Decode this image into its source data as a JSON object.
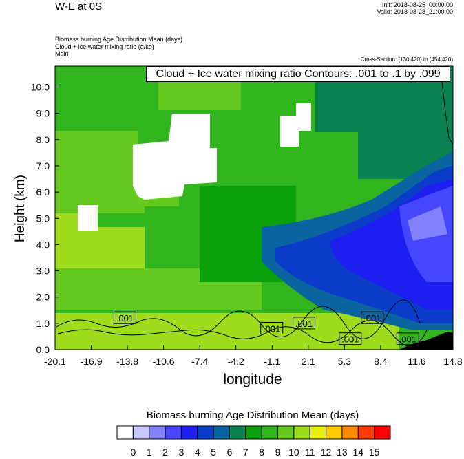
{
  "title": "W-E at 0S",
  "init": "Init: 2018-08-25_00:00:00",
  "valid": "Valid: 2018-08-28_21:00:00",
  "desc_lines": [
    "Biomass burning Age Distribution Mean   (days)",
    "Cloud + ice water mixing ratio   (g/kg)",
    "Main"
  ],
  "cross_section": "Cross-Section: (130,420) to (454,420)",
  "contour_label": "Cloud + Ice water mixing ratio Contours: .001 to .1 by .099",
  "chart_data": {
    "type": "heatmap",
    "xlabel": "longitude",
    "ylabel": "Height (km)",
    "x_ticks": [
      "-20.1",
      "-16.9",
      "-13.8",
      "-10.6",
      "-7.4",
      "-4.2",
      "-1.1",
      "2.1",
      "5.3",
      "8.4",
      "11.6",
      "14.8"
    ],
    "y_ticks": [
      "0.0",
      "1.0",
      "2.0",
      "3.0",
      "4.0",
      "5.0",
      "6.0",
      "7.0",
      "8.0",
      "9.0",
      "10.0"
    ],
    "ylim": [
      0,
      10.8
    ],
    "contour_labels": [
      {
        "text": ".001",
        "x_index": 1.93,
        "y": 1.2
      },
      {
        "text": ".001",
        "x_index": 5.99,
        "y": 0.8
      },
      {
        "text": ".001",
        "x_index": 6.88,
        "y": 1.0
      },
      {
        "text": ".001",
        "x_index": 8.77,
        "y": 1.2
      },
      {
        "text": ".001",
        "x_index": 8.16,
        "y": 0.4
      },
      {
        "text": ".001",
        "x_index": 9.75,
        "y": 0.4
      }
    ],
    "colorbar": {
      "title": "Biomass burning Age Distribution Mean  (days)",
      "labels": [
        "0",
        "1",
        "2",
        "3",
        "4",
        "5",
        "6",
        "7",
        "8",
        "9",
        "10",
        "11",
        "12",
        "13",
        "14",
        "15"
      ],
      "colors": [
        "#ffffff",
        "#c8c8ff",
        "#8282ff",
        "#4646ff",
        "#1e1ef0",
        "#0a3cc8",
        "#0a64a0",
        "#0a8250",
        "#0aa00a",
        "#32b41e",
        "#64c81e",
        "#a0dc1e",
        "#e6f00a",
        "#ffc800",
        "#ff8c00",
        "#ff3c00",
        "#ff0000"
      ]
    }
  }
}
